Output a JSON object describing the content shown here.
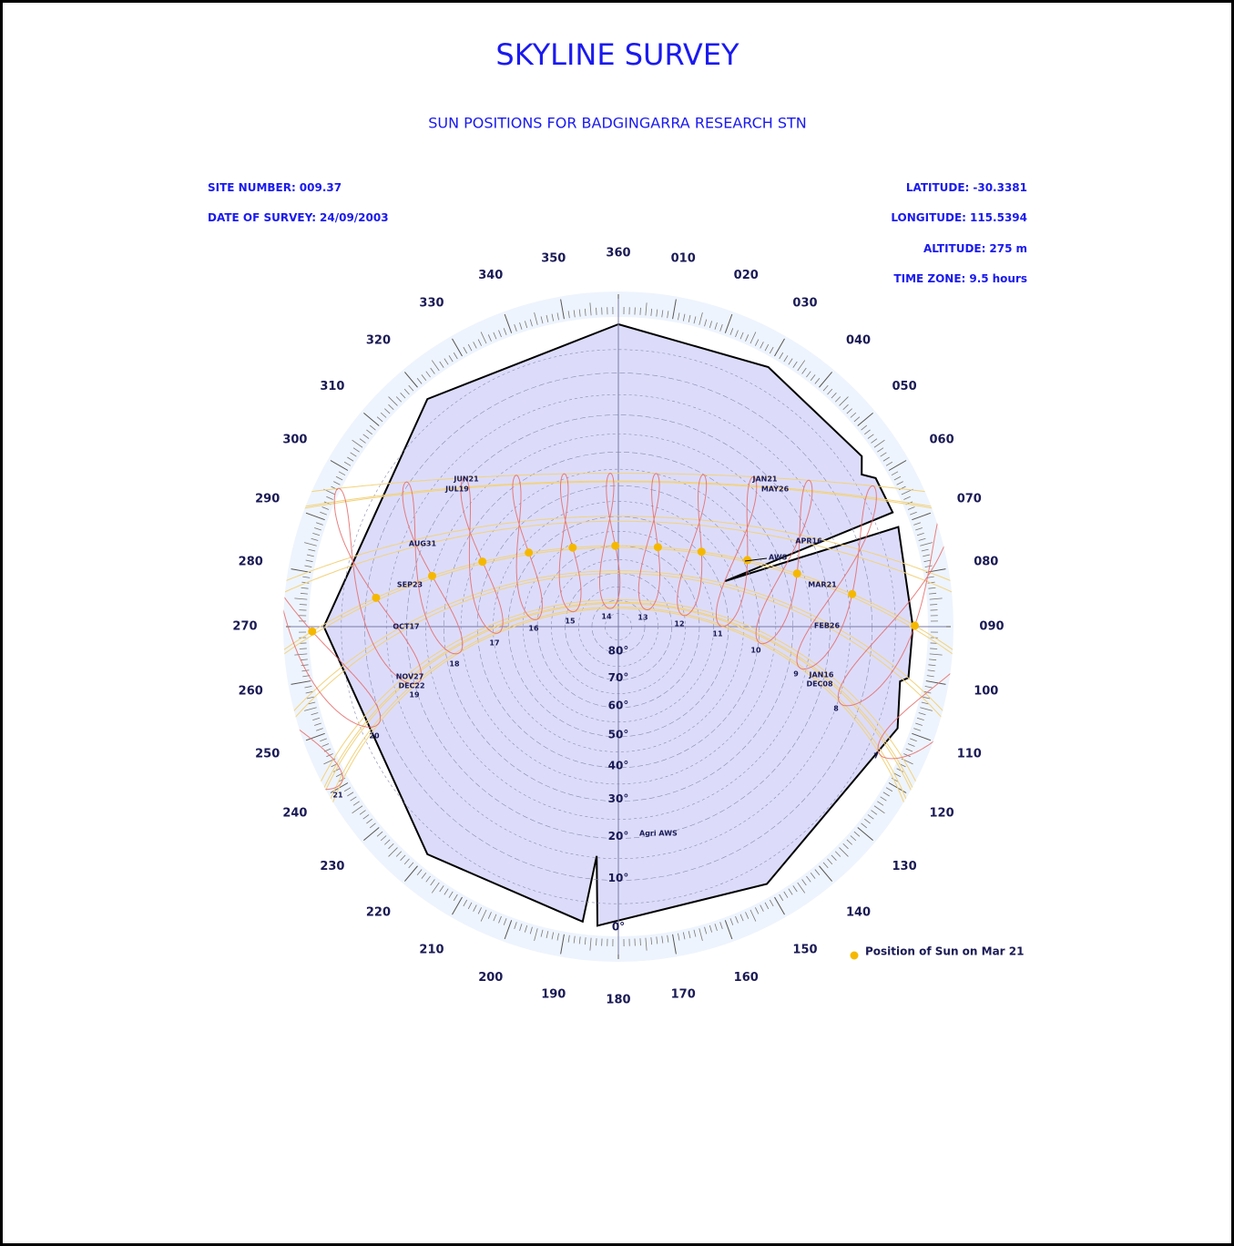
{
  "header": {
    "title": "SKYLINE SURVEY",
    "subtitle": "SUN POSITIONS FOR BADGINGARRA RESEARCH STN"
  },
  "site": {
    "site_number": {
      "label": "SITE NUMBER:",
      "value": "009.37"
    },
    "survey_date": {
      "label": "DATE OF SURVEY:",
      "value": "24/09/2003"
    },
    "latitude": {
      "label": "LATITUDE:",
      "value": -30.3381
    },
    "longitude": {
      "label": "LONGITUDE:",
      "value": 115.5394
    },
    "altitude": {
      "label": "ALTITUDE:",
      "value": 275,
      "unit": "m"
    },
    "time_zone": {
      "label": "TIME ZONE:",
      "value": 9.5,
      "unit": "hours"
    }
  },
  "azimuth_ticks": [
    360,
    {
      "value": 10,
      "label": "010"
    },
    {
      "value": 20,
      "label": "020"
    },
    {
      "value": 30,
      "label": "030"
    },
    {
      "value": 40,
      "label": "040"
    },
    {
      "value": 50,
      "label": "050"
    },
    {
      "value": 60,
      "label": "060"
    },
    {
      "value": 70,
      "label": "070"
    },
    {
      "value": 80,
      "label": "080"
    },
    {
      "value": 90,
      "label": "090"
    },
    100,
    110,
    120,
    130,
    140,
    150,
    160,
    170,
    180,
    190,
    200,
    210,
    220,
    230,
    240,
    250,
    260,
    270,
    280,
    290,
    300,
    310,
    320,
    330,
    340,
    350
  ],
  "altitude_ticks": [
    {
      "value": 80,
      "label": "80°"
    },
    {
      "value": 70,
      "label": "70°"
    },
    {
      "value": 60,
      "label": "60°"
    },
    {
      "value": 50,
      "label": "50°"
    },
    {
      "value": 40,
      "label": "40°"
    },
    {
      "value": 30,
      "label": "30°"
    },
    {
      "value": 20,
      "label": "20°"
    },
    {
      "value": 10,
      "label": "10°"
    },
    {
      "value": 0,
      "label": "0°"
    }
  ],
  "hour_labels": [
    7,
    8,
    9,
    10,
    11,
    12,
    13,
    14,
    15,
    16,
    17,
    18,
    19,
    20,
    21
  ],
  "date_labels": [
    "JUN21",
    "JUL19",
    "AUG31",
    "SEP23",
    "OCT17",
    "NOV27",
    "DEC22",
    "JAN21",
    "MAY26",
    "APR16",
    "MAR21",
    "FEB26",
    "JAN16",
    "DEC08"
  ],
  "annotations": [
    "AWS",
    "Agri AWS"
  ],
  "skyline": [
    [
      0,
      0
    ],
    [
      30,
      0.5
    ],
    [
      55,
      1
    ],
    [
      58,
      3
    ],
    [
      60,
      1
    ],
    [
      67.4,
      1
    ],
    [
      66.9,
      48
    ],
    [
      70.4,
      1
    ],
    [
      90,
      1.5
    ],
    [
      100,
      1.5
    ],
    [
      101,
      3
    ],
    [
      110,
      1
    ],
    [
      150,
      1
    ],
    [
      184,
      0.5
    ],
    [
      185.4,
      15.4
    ],
    [
      186.9,
      1
    ],
    [
      220,
      1
    ],
    [
      270,
      1.5
    ],
    [
      320,
      1
    ],
    [
      360,
      0
    ]
  ],
  "legend": "Position of Sun on Mar 21"
}
